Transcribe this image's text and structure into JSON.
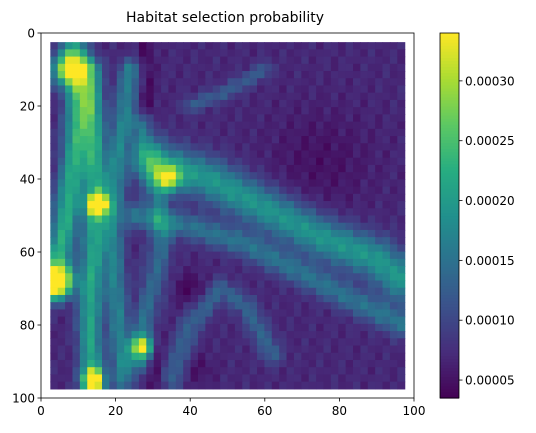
{
  "chart_data": {
    "type": "heatmap",
    "title": "Habitat selection probability",
    "xlabel": "",
    "ylabel": "",
    "xlim": [
      0,
      100
    ],
    "ylim": [
      100,
      0
    ],
    "y_inverted": true,
    "data_extent": {
      "x": [
        2.5,
        97.5
      ],
      "y": [
        2.5,
        97.5
      ]
    },
    "x_ticks": [
      0,
      20,
      40,
      60,
      80,
      100
    ],
    "x_tick_labels": [
      "0",
      "20",
      "40",
      "60",
      "80",
      "100"
    ],
    "y_ticks": [
      0,
      20,
      40,
      60,
      80,
      100
    ],
    "y_tick_labels": [
      "0",
      "20",
      "40",
      "60",
      "80",
      "100"
    ],
    "grid": false,
    "colormap": "viridis",
    "colorbar": {
      "range": [
        3.5e-05,
        0.00034
      ],
      "ticks": [
        5e-05,
        0.0001,
        0.00015,
        0.0002,
        0.00025,
        0.0003
      ],
      "tick_labels": [
        "0.00005",
        "0.00010",
        "0.00015",
        "0.00020",
        "0.00025",
        "0.00030"
      ],
      "placement": "right"
    },
    "value_range": [
      3.5e-05,
      0.00034
    ],
    "features": [
      {
        "kind": "band",
        "path": [
          [
            3,
            70
          ],
          [
            6,
            55
          ],
          [
            9,
            35
          ],
          [
            10,
            20
          ],
          [
            9,
            5
          ]
        ],
        "width": 2.5,
        "value": 0.00024
      },
      {
        "kind": "band",
        "path": [
          [
            14,
            98
          ],
          [
            13,
            80
          ],
          [
            14,
            60
          ],
          [
            15,
            45
          ],
          [
            14,
            25
          ],
          [
            13,
            10
          ]
        ],
        "width": 2.2,
        "value": 0.00023
      },
      {
        "kind": "band",
        "path": [
          [
            22,
            95
          ],
          [
            20,
            70
          ],
          [
            19,
            50
          ],
          [
            21,
            30
          ],
          [
            24,
            10
          ]
        ],
        "width": 2.0,
        "value": 0.00018
      },
      {
        "kind": "band",
        "path": [
          [
            26,
            90
          ],
          [
            30,
            70
          ],
          [
            32,
            55
          ],
          [
            30,
            40
          ],
          [
            27,
            25
          ]
        ],
        "width": 2.2,
        "value": 0.00017
      },
      {
        "kind": "band",
        "path": [
          [
            30,
            35
          ],
          [
            45,
            40
          ],
          [
            60,
            48
          ],
          [
            75,
            56
          ],
          [
            90,
            62
          ],
          [
            97,
            68
          ]
        ],
        "width": 4.0,
        "value": 0.00021
      },
      {
        "kind": "band",
        "path": [
          [
            25,
            50
          ],
          [
            40,
            53
          ],
          [
            55,
            58
          ],
          [
            70,
            66
          ],
          [
            85,
            74
          ],
          [
            97,
            80
          ]
        ],
        "width": 2.5,
        "value": 0.00016
      },
      {
        "kind": "band",
        "path": [
          [
            40,
            20
          ],
          [
            50,
            16
          ],
          [
            60,
            10
          ]
        ],
        "width": 1.5,
        "value": 0.00013
      },
      {
        "kind": "band",
        "path": [
          [
            35,
            95
          ],
          [
            40,
            80
          ],
          [
            48,
            70
          ],
          [
            55,
            75
          ],
          [
            62,
            88
          ]
        ],
        "width": 2.0,
        "value": 0.00014
      },
      {
        "kind": "band",
        "path": [
          [
            28,
            3
          ],
          [
            29,
            30
          ],
          [
            30,
            60
          ],
          [
            31,
            97
          ]
        ],
        "width": 1.5,
        "value": 4e-05
      },
      {
        "kind": "blob",
        "x": 15,
        "y": 47,
        "r": 2.0,
        "value": 0.00034
      },
      {
        "kind": "blob",
        "x": 7,
        "y": 10,
        "r": 3.0,
        "value": 0.00026
      },
      {
        "kind": "blob",
        "x": 5,
        "y": 68,
        "r": 3.0,
        "value": 0.0003
      },
      {
        "kind": "blob",
        "x": 14,
        "y": 95,
        "r": 2.0,
        "value": 0.0003
      },
      {
        "kind": "blob",
        "x": 27,
        "y": 86,
        "r": 2.0,
        "value": 0.00027
      },
      {
        "kind": "blob",
        "x": 34,
        "y": 40,
        "r": 2.5,
        "value": 0.00025
      },
      {
        "kind": "blob",
        "x": 40,
        "y": 70,
        "r": 3.0,
        "value": 4e-05
      },
      {
        "kind": "blob",
        "x": 42,
        "y": 92,
        "r": 3.0,
        "value": 5e-05
      },
      {
        "kind": "blob",
        "x": 75,
        "y": 35,
        "r": 10.0,
        "value": 5e-05
      }
    ]
  }
}
